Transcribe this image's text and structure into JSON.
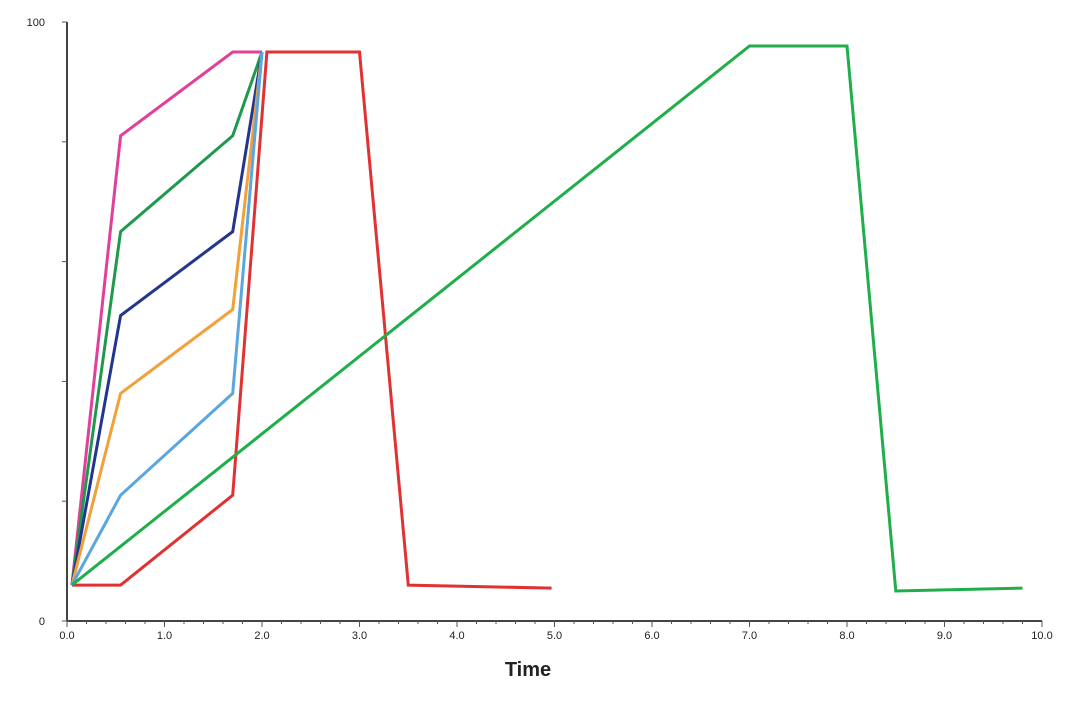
{
  "chart_data": {
    "type": "line",
    "title": "",
    "xlabel": "Time",
    "ylabel": "",
    "xlim": [
      0,
      10
    ],
    "ylim": [
      0,
      100
    ],
    "x_tick_labels": [
      "0.0",
      "1.0",
      "2.0",
      "3.0",
      "4.0",
      "5.0",
      "6.0",
      "7.0",
      "8.0",
      "9.0",
      "10.0"
    ],
    "y_tick_labels": [
      "0",
      "100"
    ],
    "grid": false,
    "series": [
      {
        "color": "#e0409a",
        "x": [
          0.05,
          0.55,
          1.7,
          2.0
        ],
        "y": [
          6,
          81,
          95,
          95
        ]
      },
      {
        "color": "#1f9a4d",
        "x": [
          0.05,
          0.55,
          1.7,
          2.0
        ],
        "y": [
          6,
          65,
          81,
          95
        ]
      },
      {
        "color": "#24358f",
        "x": [
          0.05,
          0.55,
          1.7,
          2.0
        ],
        "y": [
          6,
          51,
          65,
          95
        ]
      },
      {
        "color": "#f2a03a",
        "x": [
          0.05,
          0.55,
          1.7,
          2.0
        ],
        "y": [
          6,
          38,
          52,
          95
        ]
      },
      {
        "color": "#5aa6de",
        "x": [
          0.05,
          0.55,
          1.7,
          2.0
        ],
        "y": [
          6,
          21,
          38,
          95
        ]
      },
      {
        "color": "#e03232",
        "x": [
          0.05,
          0.55,
          1.7,
          2.05,
          3.0,
          3.5,
          4.97
        ],
        "y": [
          6,
          6,
          21,
          95,
          95,
          6,
          5.5
        ]
      },
      {
        "color": "#1fae4a",
        "x": [
          0.05,
          7.0,
          8.0,
          8.5,
          9.8
        ],
        "y": [
          6,
          96,
          96,
          5,
          5.5
        ]
      }
    ]
  }
}
